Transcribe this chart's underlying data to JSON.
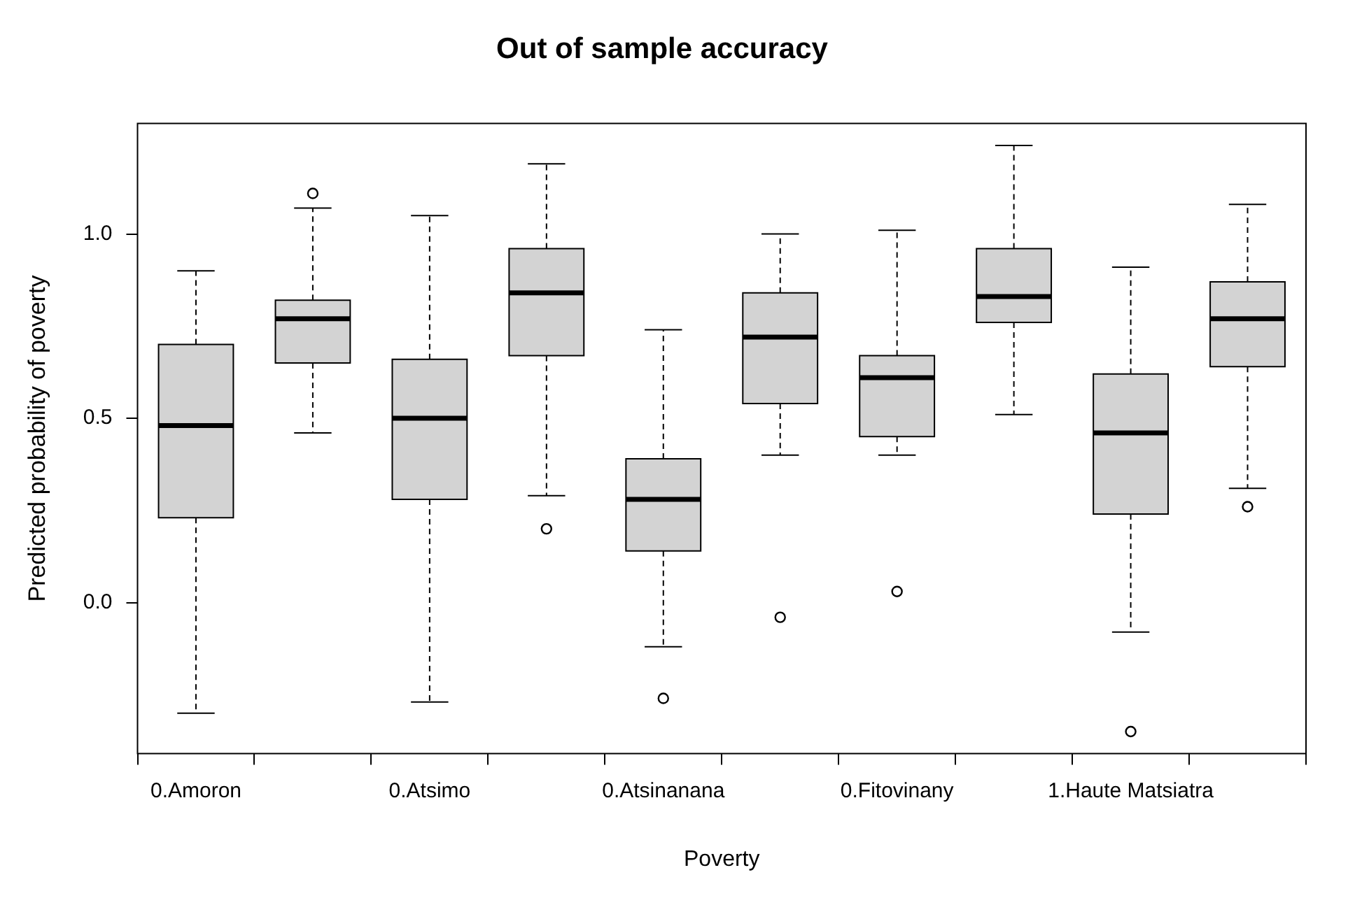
{
  "chart_data": {
    "type": "box",
    "title": "Out of sample accuracy",
    "xlabel": "Poverty",
    "ylabel": "Predicted probability of poverty",
    "categories": [
      "0.Amoron",
      null,
      "0.Atsimo",
      null,
      "0.Atsinanana",
      null,
      "0.Fitovinany",
      null,
      "1.Haute Matsiatra",
      null
    ],
    "color": "#d3d3d3",
    "ylim": [
      -0.41,
      1.3
    ],
    "yticks": [
      {
        "value": 0,
        "label": "0.0"
      },
      {
        "value": 0.5,
        "label": "0.5"
      },
      {
        "value": 1,
        "label": "1.0"
      }
    ],
    "grid": false,
    "boxes": [
      {
        "low": -0.3,
        "q1": 0.23,
        "median": 0.48,
        "q3": 0.7,
        "high": 0.9
      },
      {
        "low": 0.46,
        "q1": 0.65,
        "median": 0.77,
        "q3": 0.82,
        "high": 1.07,
        "outliers": [
          1.11
        ]
      },
      {
        "low": -0.27,
        "q1": 0.28,
        "median": 0.5,
        "q3": 0.66,
        "high": 1.05
      },
      {
        "low": 0.29,
        "q1": 0.67,
        "median": 0.84,
        "q3": 0.96,
        "high": 1.19,
        "outliers": [
          0.2
        ]
      },
      {
        "low": -0.12,
        "q1": 0.14,
        "median": 0.28,
        "q3": 0.39,
        "high": 0.74,
        "outliers": [
          -0.26
        ]
      },
      {
        "low": 0.4,
        "q1": 0.54,
        "median": 0.72,
        "q3": 0.84,
        "high": 1.0,
        "outliers": [
          -0.04
        ]
      },
      {
        "low": 0.4,
        "q1": 0.45,
        "median": 0.61,
        "q3": 0.67,
        "high": 1.01,
        "outliers": [
          0.03
        ]
      },
      {
        "low": 0.51,
        "q1": 0.76,
        "median": 0.83,
        "q3": 0.96,
        "high": 1.24
      },
      {
        "low": -0.08,
        "q1": 0.24,
        "median": 0.46,
        "q3": 0.62,
        "high": 0.91,
        "outliers": [
          -0.35
        ]
      },
      {
        "low": 0.31,
        "q1": 0.64,
        "median": 0.77,
        "q3": 0.87,
        "high": 1.08,
        "outliers": [
          0.26
        ]
      }
    ]
  }
}
